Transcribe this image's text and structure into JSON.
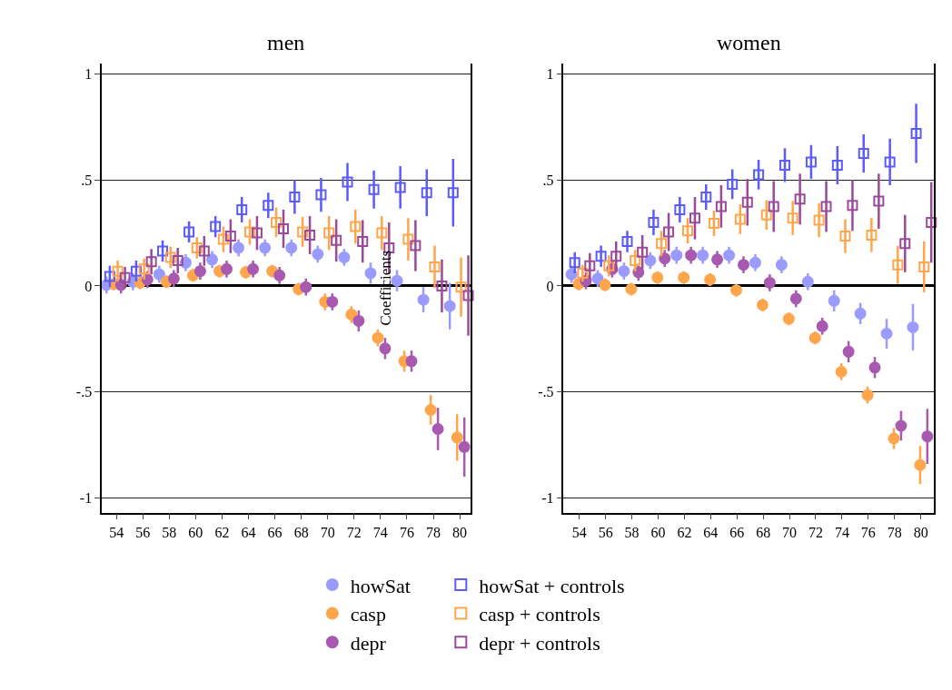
{
  "chart_data": [
    {
      "type": "scatter",
      "title": "men",
      "ylabel": "Coefficients",
      "grid": "y",
      "legend": "bottom",
      "xlim": [
        52.9,
        80.8
      ],
      "ylim": [
        -1.07,
        1.05
      ],
      "xticks": [
        54,
        56,
        58,
        60,
        62,
        64,
        66,
        68,
        70,
        72,
        74,
        76,
        78,
        80
      ],
      "yticks": [
        {
          "value": -1,
          "label": "-1"
        },
        {
          "value": -0.5,
          "label": "-.5"
        },
        0,
        {
          "value": 0.5,
          "label": ".5"
        },
        1
      ],
      "series": [
        {
          "name": "howSat",
          "color": "#9b9bff",
          "marker": "circle",
          "x": [
            53.25,
            55.25,
            57.25,
            59.25,
            61.25,
            63.25,
            65.25,
            67.25,
            69.25,
            71.25,
            73.25,
            75.25,
            77.25,
            79.25
          ],
          "values": [
            0.005,
            0.02,
            0.055,
            0.11,
            0.125,
            0.18,
            0.18,
            0.18,
            0.15,
            0.135,
            0.06,
            0.025,
            -0.065,
            -0.095
          ],
          "errors": [
            0.04,
            0.04,
            0.04,
            0.04,
            0.04,
            0.04,
            0.04,
            0.04,
            0.04,
            0.04,
            0.05,
            0.05,
            0.06,
            0.11
          ]
        },
        {
          "name": "casp",
          "color": "#ffa64d",
          "marker": "circle",
          "x": [
            53.8,
            55.8,
            57.8,
            59.8,
            61.8,
            63.8,
            65.8,
            67.8,
            69.8,
            71.8,
            73.8,
            75.8,
            77.8,
            79.8
          ],
          "values": [
            0.01,
            0.015,
            0.02,
            0.05,
            0.07,
            0.065,
            0.07,
            -0.015,
            -0.075,
            -0.135,
            -0.245,
            -0.355,
            -0.585,
            -0.715
          ],
          "errors": [
            0.03,
            0.03,
            0.03,
            0.03,
            0.03,
            0.03,
            0.03,
            0.03,
            0.04,
            0.04,
            0.04,
            0.05,
            0.07,
            0.11
          ]
        },
        {
          "name": "depr",
          "color": "#a85ab0",
          "marker": "circle",
          "x": [
            54.35,
            56.35,
            58.35,
            60.35,
            62.35,
            64.35,
            66.35,
            68.35,
            70.35,
            72.35,
            74.35,
            76.35,
            78.35,
            80.35
          ],
          "values": [
            0.005,
            0.03,
            0.035,
            0.07,
            0.08,
            0.08,
            0.05,
            -0.005,
            -0.075,
            -0.165,
            -0.295,
            -0.355,
            -0.675,
            -0.76
          ],
          "errors": [
            0.04,
            0.04,
            0.04,
            0.04,
            0.04,
            0.04,
            0.04,
            0.04,
            0.04,
            0.05,
            0.05,
            0.05,
            0.1,
            0.14
          ]
        },
        {
          "name": "howSat + controls",
          "color": "#5b5bff",
          "marker": "square",
          "x": [
            53.5,
            55.5,
            57.5,
            59.5,
            61.5,
            63.5,
            65.5,
            67.5,
            69.5,
            71.5,
            73.5,
            75.5,
            77.5,
            79.5
          ],
          "values": [
            0.045,
            0.07,
            0.165,
            0.255,
            0.28,
            0.36,
            0.38,
            0.42,
            0.43,
            0.49,
            0.455,
            0.465,
            0.44,
            0.44
          ],
          "errors": [
            0.05,
            0.05,
            0.05,
            0.05,
            0.05,
            0.06,
            0.06,
            0.08,
            0.08,
            0.09,
            0.09,
            0.1,
            0.11,
            0.16
          ]
        },
        {
          "name": "casp + controls",
          "color": "#ffa64d",
          "marker": "square",
          "x": [
            54.1,
            56.1,
            58.1,
            60.1,
            62.1,
            64.1,
            66.1,
            68.1,
            70.1,
            72.1,
            74.1,
            76.1,
            78.1,
            80.1
          ],
          "values": [
            0.07,
            0.08,
            0.135,
            0.18,
            0.22,
            0.255,
            0.3,
            0.255,
            0.25,
            0.28,
            0.25,
            0.22,
            0.09,
            -0.005
          ],
          "errors": [
            0.05,
            0.05,
            0.05,
            0.05,
            0.06,
            0.06,
            0.07,
            0.07,
            0.08,
            0.08,
            0.08,
            0.1,
            0.1,
            0.14
          ]
        },
        {
          "name": "depr + controls",
          "color": "#9b4a9b",
          "marker": "square",
          "x": [
            54.65,
            56.65,
            58.65,
            60.65,
            62.65,
            64.65,
            66.65,
            68.65,
            70.65,
            72.65,
            74.65,
            76.65,
            78.65,
            80.65
          ],
          "values": [
            0.04,
            0.115,
            0.12,
            0.165,
            0.235,
            0.25,
            0.27,
            0.24,
            0.215,
            0.21,
            0.18,
            0.19,
            0.0,
            -0.045
          ],
          "errors": [
            0.05,
            0.06,
            0.06,
            0.07,
            0.08,
            0.08,
            0.09,
            0.09,
            0.1,
            0.1,
            0.12,
            0.12,
            0.125,
            0.19
          ]
        }
      ]
    },
    {
      "type": "scatter",
      "title": "women",
      "grid": "y",
      "xlim": [
        52.8,
        81.0
      ],
      "ylim": [
        -1.07,
        1.05
      ],
      "xticks": [
        54,
        56,
        58,
        60,
        62,
        64,
        66,
        68,
        70,
        72,
        74,
        76,
        78,
        80
      ],
      "yticks": [
        {
          "value": -1,
          "label": "-1"
        },
        {
          "value": -0.5,
          "label": "-.5"
        },
        0,
        {
          "value": 0.5,
          "label": ".5"
        },
        1
      ],
      "series": [
        {
          "color": "#9b9bff",
          "marker": "circle",
          "x": [
            53.4,
            55.4,
            57.4,
            59.4,
            61.4,
            63.4,
            65.4,
            67.4,
            69.4,
            71.4,
            73.4,
            75.4,
            77.4,
            79.4
          ],
          "values": [
            0.055,
            0.035,
            0.07,
            0.12,
            0.145,
            0.145,
            0.145,
            0.11,
            0.1,
            0.02,
            -0.07,
            -0.13,
            -0.225,
            -0.195
          ],
          "errors": [
            0.04,
            0.04,
            0.04,
            0.04,
            0.04,
            0.04,
            0.04,
            0.04,
            0.04,
            0.04,
            0.05,
            0.05,
            0.07,
            0.11
          ]
        },
        {
          "color": "#ffa64d",
          "marker": "circle",
          "x": [
            53.95,
            55.95,
            57.95,
            59.95,
            61.95,
            63.95,
            65.95,
            67.95,
            69.95,
            71.95,
            73.95,
            75.95,
            77.95,
            79.95
          ],
          "values": [
            0.01,
            0.005,
            -0.015,
            0.04,
            0.04,
            0.03,
            -0.02,
            -0.09,
            -0.155,
            -0.245,
            -0.405,
            -0.515,
            -0.72,
            -0.845
          ],
          "errors": [
            0.03,
            0.03,
            0.03,
            0.03,
            0.03,
            0.03,
            0.03,
            0.03,
            0.03,
            0.03,
            0.04,
            0.04,
            0.05,
            0.09
          ]
        },
        {
          "color": "#a85ab0",
          "marker": "circle",
          "x": [
            54.5,
            56.5,
            58.5,
            60.5,
            62.5,
            64.5,
            66.5,
            68.5,
            70.5,
            72.5,
            74.5,
            76.5,
            78.5,
            80.5
          ],
          "values": [
            0.025,
            0.08,
            0.065,
            0.13,
            0.145,
            0.125,
            0.1,
            0.015,
            -0.06,
            -0.19,
            -0.31,
            -0.385,
            -0.66,
            -0.71
          ],
          "errors": [
            0.04,
            0.04,
            0.04,
            0.04,
            0.04,
            0.04,
            0.04,
            0.04,
            0.04,
            0.04,
            0.05,
            0.05,
            0.07,
            0.13
          ]
        },
        {
          "color": "#5b5bff",
          "marker": "square",
          "x": [
            53.65,
            55.65,
            57.65,
            59.65,
            61.65,
            63.65,
            65.65,
            67.65,
            69.65,
            71.65,
            73.65,
            75.65,
            77.65,
            79.65
          ],
          "values": [
            0.11,
            0.14,
            0.21,
            0.3,
            0.36,
            0.42,
            0.48,
            0.525,
            0.57,
            0.585,
            0.57,
            0.625,
            0.585,
            0.72
          ],
          "errors": [
            0.05,
            0.05,
            0.05,
            0.06,
            0.06,
            0.06,
            0.07,
            0.07,
            0.08,
            0.08,
            0.09,
            0.09,
            0.11,
            0.14
          ]
        },
        {
          "color": "#ffa64d",
          "marker": "square",
          "x": [
            54.25,
            56.25,
            58.25,
            60.25,
            62.25,
            64.25,
            66.25,
            68.25,
            70.25,
            72.25,
            74.25,
            76.25,
            78.25,
            80.25
          ],
          "values": [
            0.06,
            0.095,
            0.12,
            0.2,
            0.26,
            0.295,
            0.315,
            0.335,
            0.32,
            0.31,
            0.235,
            0.24,
            0.1,
            0.09
          ],
          "errors": [
            0.04,
            0.05,
            0.05,
            0.06,
            0.06,
            0.06,
            0.07,
            0.07,
            0.08,
            0.08,
            0.08,
            0.08,
            0.09,
            0.12
          ]
        },
        {
          "color": "#9b4a9b",
          "marker": "square",
          "x": [
            54.8,
            56.8,
            58.8,
            60.8,
            62.8,
            64.8,
            66.8,
            68.8,
            70.8,
            72.8,
            74.8,
            76.8,
            78.8,
            80.8
          ],
          "values": [
            0.095,
            0.14,
            0.16,
            0.255,
            0.32,
            0.375,
            0.395,
            0.375,
            0.41,
            0.375,
            0.38,
            0.4,
            0.2,
            0.3
          ],
          "errors": [
            0.06,
            0.07,
            0.08,
            0.09,
            0.1,
            0.1,
            0.11,
            0.12,
            0.12,
            0.12,
            0.12,
            0.13,
            0.135,
            0.19
          ]
        }
      ]
    }
  ]
}
